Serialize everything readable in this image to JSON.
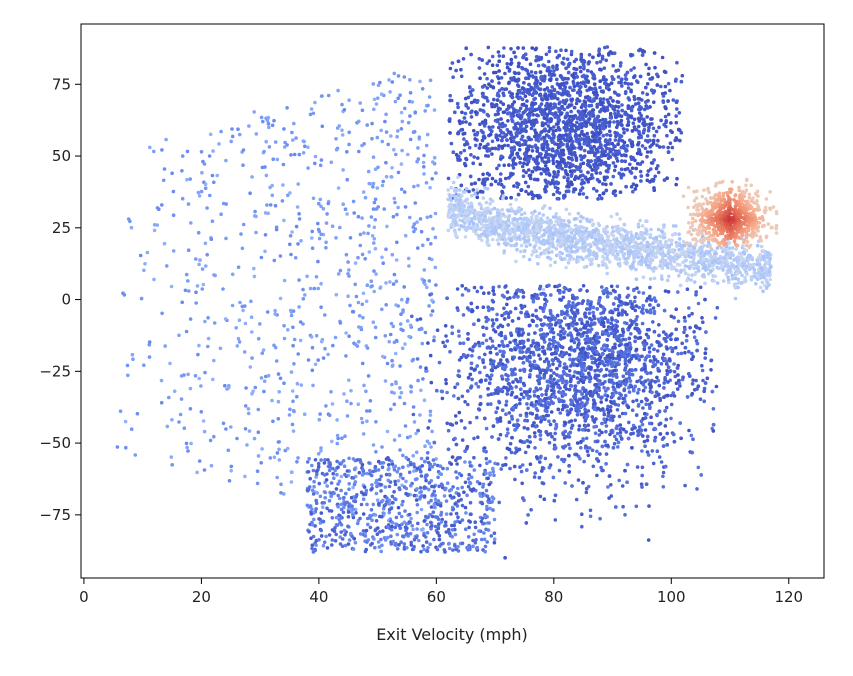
{
  "chart_data": {
    "type": "scatter",
    "title": "",
    "xlabel": "Exit Velocity (mph)",
    "ylabel": "",
    "xlim": [
      -0.5,
      126
    ],
    "ylim": [
      -97,
      96
    ],
    "x_ticks": [
      0,
      20,
      40,
      60,
      80,
      100,
      120
    ],
    "y_ticks": [
      -75,
      -50,
      -25,
      0,
      25,
      50,
      75
    ],
    "x_tick_labels": [
      "0",
      "20",
      "40",
      "60",
      "80",
      "100",
      "120"
    ],
    "y_tick_labels": [
      "−75",
      "−50",
      "−25",
      "0",
      "25",
      "50",
      "75"
    ],
    "grid": false,
    "legend": "none",
    "colormap": "coolwarm",
    "colormap_stops": [
      "#3b4cc0",
      "#6788ee",
      "#9abbff",
      "#c9d7f0",
      "#edd1c2",
      "#f7a889",
      "#e26952",
      "#b40426"
    ],
    "description": "Dense point cloud of batted balls: launch angle (y) vs exit velocity (x). Color encodes a value that is highest (red) near 105-117 mph at 20-40 degrees and lighter along a band from about 65 mph at 30 degrees to 115 mph at 10 degrees.",
    "regions": [
      {
        "name": "upper-cloud",
        "x_range": [
          62,
          102
        ],
        "y_range": [
          35,
          88
        ],
        "level": 0.03
      },
      {
        "name": "lower-cloud",
        "x_range": [
          60,
          108
        ],
        "y_range": [
          -55,
          5
        ],
        "level": 0.06
      },
      {
        "name": "deep-grounders",
        "x_range": [
          38,
          70
        ],
        "y_range": [
          -88,
          -55
        ],
        "level": 0.1
      },
      {
        "name": "weak-contact",
        "x_range": [
          5,
          60
        ],
        "y_range": [
          -88,
          85
        ],
        "level": 0.2
      },
      {
        "name": "light-band",
        "x_points": [
          62,
          70,
          80,
          90,
          100,
          110,
          117
        ],
        "y_points": [
          32,
          26,
          22,
          19,
          16,
          13,
          11
        ],
        "level": 0.38
      },
      {
        "name": "barrel-zone",
        "x_range": [
          102,
          118
        ],
        "y_range": [
          18,
          44
        ],
        "level": 0.95
      }
    ]
  }
}
